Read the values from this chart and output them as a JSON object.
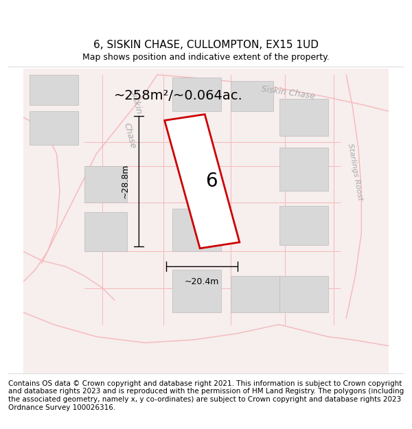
{
  "title": "6, SISKIN CHASE, CULLOMPTON, EX15 1UD",
  "subtitle": "Map shows position and indicative extent of the property.",
  "footer": "Contains OS data © Crown copyright and database right 2021. This information is subject to Crown copyright and database rights 2023 and is reproduced with the permission of HM Land Registry. The polygons (including the associated geometry, namely x, y co-ordinates) are subject to Crown copyright and database rights 2023 Ordnance Survey 100026316.",
  "area_label": "~258m²/~0.064ac.",
  "width_label": "~20.4m",
  "height_label": "~28.8m",
  "plot_number": "6",
  "bg_color": "#ffffff",
  "map_bg": "#f9f0f0",
  "road_color": "#f5b8b8",
  "building_color": "#d8d8d8",
  "plot_outline_color": "#cc0000",
  "title_fontsize": 11,
  "subtitle_fontsize": 9,
  "footer_fontsize": 7.5
}
